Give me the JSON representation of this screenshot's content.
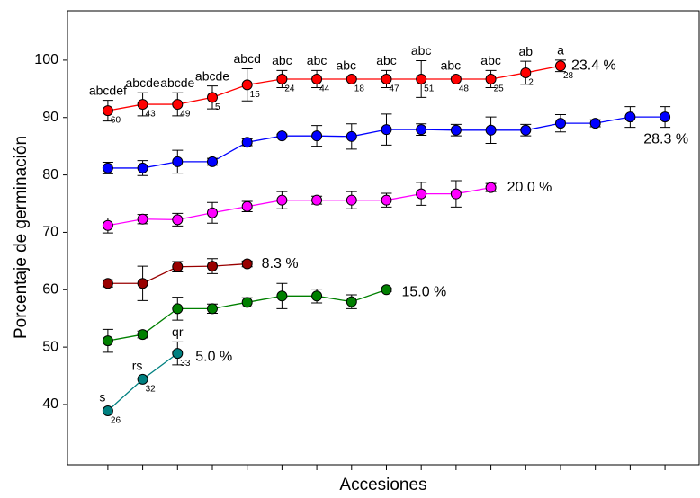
{
  "chart_data": {
    "type": "line",
    "x_label": "Accesiones",
    "y_label": "Porcentaje de germinación",
    "xlim": [
      -0.16,
      17.98
    ],
    "xticks": [
      1,
      2,
      3,
      4,
      5,
      6,
      7,
      8,
      9,
      10,
      11,
      12,
      13,
      14,
      15,
      16,
      17
    ],
    "ylim": [
      29.5,
      108.6
    ],
    "yticks": [
      40,
      50,
      60,
      70,
      80,
      90,
      100
    ],
    "series": [
      {
        "name": "23.4 %",
        "color": "#ff0000",
        "marker_color": "#ff0000",
        "x": [
          1,
          2,
          3,
          4,
          5,
          6,
          7,
          8,
          9,
          10,
          11,
          12,
          13,
          14
        ],
        "values": [
          91.2,
          92.3,
          92.3,
          93.5,
          95.7,
          96.7,
          96.7,
          96.7,
          96.7,
          96.7,
          96.7,
          96.7,
          97.8,
          99.0
        ],
        "errors": [
          1.8,
          2.0,
          2.0,
          2.0,
          2.8,
          1.5,
          1.5,
          0,
          1.5,
          3.2,
          0,
          1.5,
          2.0,
          1.0
        ],
        "letters": [
          "abcdef",
          "abcde",
          "abcde",
          "abcde",
          "abcd",
          "abc",
          "abc",
          "abc",
          "abc",
          "abc",
          "abc",
          "abc",
          "ab",
          "a"
        ],
        "ids": [
          "60",
          "43",
          "49",
          "5",
          "15",
          "24",
          "44",
          "18",
          "47",
          "51",
          "48",
          "25",
          "2",
          "28"
        ]
      },
      {
        "name": "28.3 %",
        "color": "#0000ff",
        "marker_color": "#0000ff",
        "x": [
          1,
          2,
          3,
          4,
          5,
          6,
          7,
          8,
          9,
          10,
          11,
          12,
          13,
          14,
          15,
          16,
          17
        ],
        "values": [
          81.2,
          81.2,
          82.3,
          82.3,
          85.7,
          86.8,
          86.8,
          86.7,
          87.9,
          87.9,
          87.8,
          87.8,
          87.8,
          89.0,
          89.0,
          90.1,
          90.1
        ],
        "errors": [
          1.0,
          1.3,
          2.0,
          0.6,
          0.6,
          0.3,
          1.8,
          2.2,
          2.7,
          1.0,
          1.0,
          2.3,
          1.0,
          1.5,
          0.6,
          1.8,
          1.8
        ]
      },
      {
        "name": "20.0 %",
        "color": "#ff00ff",
        "marker_color": "#ff00ff",
        "x": [
          1,
          2,
          3,
          4,
          5,
          6,
          7,
          8,
          9,
          10,
          11,
          12
        ],
        "values": [
          71.2,
          72.3,
          72.2,
          73.4,
          74.5,
          75.6,
          75.6,
          75.6,
          75.6,
          76.7,
          76.7,
          77.8
        ],
        "errors": [
          1.3,
          0.8,
          1.1,
          1.8,
          0.9,
          1.5,
          0.7,
          1.5,
          1.2,
          2.0,
          2.3,
          0.7
        ]
      },
      {
        "name": "8.3 %",
        "color": "#990000",
        "marker_color": "#990000",
        "x": [
          1,
          2,
          3,
          4,
          5
        ],
        "values": [
          61.1,
          61.1,
          64.0,
          64.1,
          64.5
        ],
        "errors": [
          0.6,
          3.0,
          0.9,
          1.3,
          0.5
        ]
      },
      {
        "name": "15.0 %",
        "color": "#008000",
        "marker_color": "#008000",
        "x": [
          1,
          2,
          3,
          4,
          5,
          6,
          7,
          8,
          9
        ],
        "values": [
          51.1,
          52.2,
          56.7,
          56.7,
          57.8,
          58.9,
          58.9,
          57.9,
          60.0
        ],
        "errors": [
          2.0,
          0.6,
          2.0,
          0.8,
          0.8,
          2.2,
          1.2,
          1.2,
          0.3
        ]
      },
      {
        "name": "5.0 %",
        "color": "#008080",
        "marker_color": "#008080",
        "x": [
          1,
          2,
          3
        ],
        "values": [
          38.9,
          44.4,
          48.9
        ],
        "errors": [
          0,
          0,
          2.0
        ],
        "letters": [
          "s",
          "rs",
          "qr"
        ],
        "ids": [
          "26",
          "32",
          "33"
        ]
      }
    ]
  }
}
